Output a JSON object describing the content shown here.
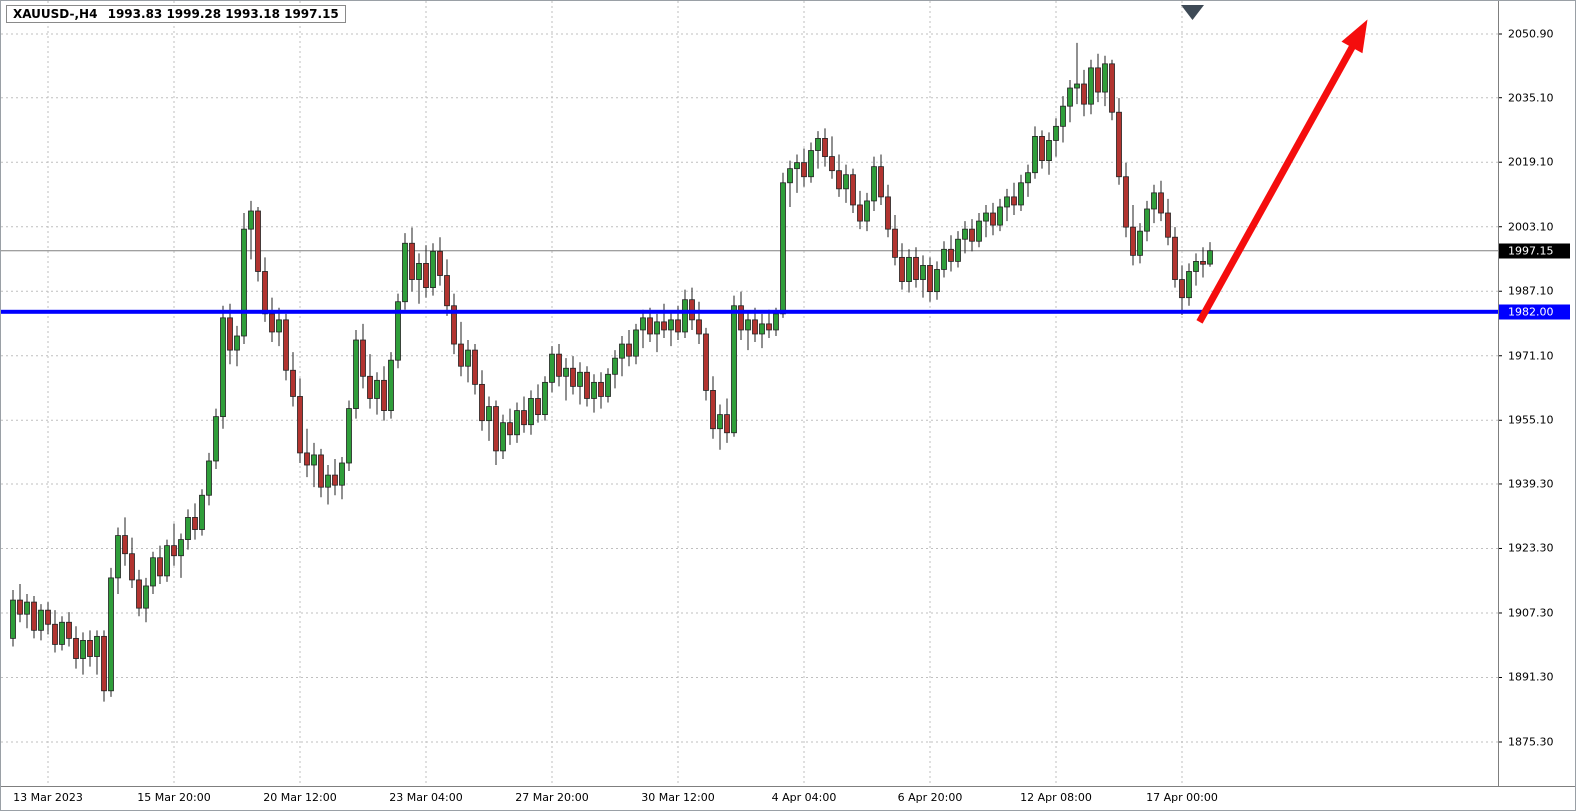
{
  "header": {
    "symbol_period": "XAUUSD-,H4",
    "ohlc_values": "1993.83 1999.28 1993.18 1997.15"
  },
  "colors": {
    "up": "#2f9e3a",
    "down": "#b23430",
    "wick": "#222222",
    "grid": "#bfbfbf",
    "axis_text": "#000000",
    "level_line": "#0000ff",
    "current_price_line": "#808080",
    "arrow": "#f50d0d",
    "badge_current_bg": "#000000",
    "badge_level_bg": "#0000ff",
    "badge_text": "#ffffff",
    "scroll_marker": "#3e4a56"
  },
  "price_axis": {
    "labels": [
      "2050.90",
      "2035.10",
      "2019.10",
      "2003.10",
      "1987.10",
      "1971.10",
      "1955.10",
      "1939.30",
      "1923.30",
      "1907.30",
      "1891.30",
      "1875.30"
    ],
    "current_price": "1997.15",
    "level_price": "1982.00"
  },
  "time_axis": {
    "labels": [
      {
        "text": "13 Mar 2023",
        "index": 5
      },
      {
        "text": "15 Mar 20:00",
        "index": 23
      },
      {
        "text": "20 Mar 12:00",
        "index": 41
      },
      {
        "text": "23 Mar 04:00",
        "index": 59
      },
      {
        "text": "27 Mar 20:00",
        "index": 77
      },
      {
        "text": "30 Mar 12:00",
        "index": 95
      },
      {
        "text": "4 Apr 04:00",
        "index": 113
      },
      {
        "text": "6 Apr 20:00",
        "index": 131
      },
      {
        "text": "12 Apr 08:00",
        "index": 149
      },
      {
        "text": "17 Apr 00:00",
        "index": 167
      }
    ]
  },
  "chart_data": {
    "type": "candlestick",
    "title": "XAUUSD H4 candlestick chart with 1982.00 support line and bullish arrow",
    "symbol": "XAUUSD-",
    "period": "H4",
    "ylim": [
      1869.0,
      2055.0
    ],
    "grid": true,
    "level_line_price": 1982.0,
    "current_price": 1997.15,
    "last_bar_ohlc": [
      1993.83,
      1999.28,
      1993.18,
      1997.15
    ],
    "candles_format": [
      "open",
      "high",
      "low",
      "close"
    ],
    "candles": [
      [
        1901.0,
        1913.0,
        1899.0,
        1910.5
      ],
      [
        1910.5,
        1914.5,
        1905.0,
        1907.0
      ],
      [
        1907.0,
        1912.0,
        1903.5,
        1910.0
      ],
      [
        1910.0,
        1911.5,
        1901.0,
        1903.0
      ],
      [
        1903.0,
        1909.5,
        1900.5,
        1908.0
      ],
      [
        1908.0,
        1910.0,
        1902.0,
        1904.5
      ],
      [
        1904.5,
        1908.0,
        1897.5,
        1899.5
      ],
      [
        1899.5,
        1906.5,
        1898.0,
        1905.0
      ],
      [
        1905.0,
        1907.5,
        1899.0,
        1901.0
      ],
      [
        1901.0,
        1904.0,
        1893.5,
        1896.0
      ],
      [
        1896.0,
        1902.5,
        1892.0,
        1900.5
      ],
      [
        1900.5,
        1903.0,
        1894.0,
        1896.5
      ],
      [
        1896.5,
        1903.0,
        1892.0,
        1901.5
      ],
      [
        1901.5,
        1903.0,
        1885.3,
        1888.0
      ],
      [
        1888.0,
        1918.5,
        1886.5,
        1916.0
      ],
      [
        1916.0,
        1928.5,
        1912.0,
        1926.5
      ],
      [
        1926.5,
        1931.0,
        1919.0,
        1922.0
      ],
      [
        1922.0,
        1926.0,
        1913.5,
        1915.5
      ],
      [
        1915.5,
        1918.0,
        1906.5,
        1908.5
      ],
      [
        1908.5,
        1916.0,
        1905.0,
        1914.0
      ],
      [
        1914.0,
        1922.5,
        1912.0,
        1921.0
      ],
      [
        1921.0,
        1924.0,
        1914.5,
        1916.5
      ],
      [
        1916.5,
        1925.5,
        1915.0,
        1924.0
      ],
      [
        1924.0,
        1929.5,
        1919.0,
        1921.5
      ],
      [
        1921.5,
        1927.0,
        1916.0,
        1925.5
      ],
      [
        1925.5,
        1933.0,
        1923.0,
        1931.0
      ],
      [
        1931.0,
        1934.5,
        1925.5,
        1928.0
      ],
      [
        1928.0,
        1938.0,
        1926.5,
        1936.5
      ],
      [
        1936.5,
        1947.0,
        1934.0,
        1945.0
      ],
      [
        1945.0,
        1958.0,
        1943.0,
        1956.0
      ],
      [
        1956.0,
        1983.5,
        1953.0,
        1980.5
      ],
      [
        1980.5,
        1984.0,
        1969.0,
        1972.5
      ],
      [
        1972.5,
        1978.5,
        1968.5,
        1976.0
      ],
      [
        1976.0,
        2006.5,
        1974.0,
        2002.5
      ],
      [
        2002.5,
        2009.5,
        1995.0,
        2007.0
      ],
      [
        2007.0,
        2008.0,
        1989.5,
        1992.0
      ],
      [
        1992.0,
        1995.5,
        1979.5,
        1981.5
      ],
      [
        1981.5,
        1985.5,
        1974.5,
        1977.0
      ],
      [
        1977.0,
        1983.0,
        1973.5,
        1980.0
      ],
      [
        1980.0,
        1981.5,
        1965.0,
        1967.5
      ],
      [
        1967.5,
        1972.0,
        1958.5,
        1961.0
      ],
      [
        1961.0,
        1965.5,
        1944.5,
        1947.0
      ],
      [
        1947.0,
        1953.0,
        1941.0,
        1944.0
      ],
      [
        1944.0,
        1949.5,
        1938.5,
        1946.5
      ],
      [
        1946.5,
        1948.0,
        1936.0,
        1938.5
      ],
      [
        1938.5,
        1944.0,
        1934.2,
        1941.5
      ],
      [
        1941.5,
        1945.5,
        1936.5,
        1939.0
      ],
      [
        1939.0,
        1946.0,
        1935.5,
        1944.5
      ],
      [
        1944.5,
        1960.0,
        1942.5,
        1958.0
      ],
      [
        1958.0,
        1977.5,
        1955.5,
        1975.0
      ],
      [
        1975.0,
        1979.0,
        1963.0,
        1966.0
      ],
      [
        1966.0,
        1971.5,
        1958.0,
        1960.5
      ],
      [
        1960.5,
        1967.0,
        1956.5,
        1965.0
      ],
      [
        1965.0,
        1968.5,
        1955.0,
        1957.5
      ],
      [
        1957.5,
        1972.0,
        1955.5,
        1970.0
      ],
      [
        1970.0,
        1986.5,
        1968.0,
        1984.5
      ],
      [
        1984.5,
        2001.5,
        1982.5,
        1999.0
      ],
      [
        1999.0,
        2002.9,
        1987.0,
        1990.0
      ],
      [
        1990.0,
        1996.5,
        1984.0,
        1994.0
      ],
      [
        1994.0,
        1998.5,
        1985.5,
        1988.0
      ],
      [
        1988.0,
        1999.0,
        1986.0,
        1997.0
      ],
      [
        1997.0,
        2000.5,
        1988.5,
        1991.0
      ],
      [
        1991.0,
        1995.0,
        1981.0,
        1983.5
      ],
      [
        1983.5,
        1986.5,
        1971.5,
        1974.0
      ],
      [
        1974.0,
        1979.5,
        1966.0,
        1968.5
      ],
      [
        1968.5,
        1975.0,
        1964.5,
        1972.5
      ],
      [
        1972.5,
        1974.0,
        1961.5,
        1964.0
      ],
      [
        1964.0,
        1967.5,
        1952.5,
        1955.0
      ],
      [
        1955.0,
        1961.0,
        1950.0,
        1958.5
      ],
      [
        1958.5,
        1960.0,
        1944.0,
        1947.5
      ],
      [
        1947.5,
        1956.5,
        1945.5,
        1954.5
      ],
      [
        1954.5,
        1958.0,
        1949.0,
        1951.5
      ],
      [
        1951.5,
        1959.5,
        1949.5,
        1957.5
      ],
      [
        1957.5,
        1961.0,
        1952.0,
        1954.0
      ],
      [
        1954.0,
        1962.5,
        1951.5,
        1960.5
      ],
      [
        1960.5,
        1964.0,
        1954.5,
        1956.5
      ],
      [
        1956.5,
        1966.0,
        1955.0,
        1964.5
      ],
      [
        1964.5,
        1973.5,
        1962.0,
        1971.5
      ],
      [
        1971.5,
        1974.0,
        1963.5,
        1966.0
      ],
      [
        1966.0,
        1970.5,
        1960.0,
        1968.0
      ],
      [
        1968.0,
        1971.0,
        1961.5,
        1963.5
      ],
      [
        1963.5,
        1969.5,
        1959.0,
        1967.0
      ],
      [
        1967.0,
        1968.5,
        1958.5,
        1960.5
      ],
      [
        1960.5,
        1966.5,
        1957.0,
        1964.5
      ],
      [
        1964.5,
        1967.0,
        1958.0,
        1961.0
      ],
      [
        1961.0,
        1968.0,
        1959.5,
        1966.5
      ],
      [
        1966.5,
        1972.5,
        1963.0,
        1970.5
      ],
      [
        1970.5,
        1976.0,
        1966.0,
        1974.0
      ],
      [
        1974.0,
        1977.5,
        1968.5,
        1971.0
      ],
      [
        1971.0,
        1979.0,
        1969.0,
        1977.5
      ],
      [
        1977.5,
        1982.5,
        1973.0,
        1980.5
      ],
      [
        1980.5,
        1983.0,
        1974.5,
        1976.5
      ],
      [
        1976.5,
        1981.5,
        1972.0,
        1979.5
      ],
      [
        1979.5,
        1984.0,
        1975.5,
        1977.5
      ],
      [
        1977.5,
        1982.0,
        1973.5,
        1980.0
      ],
      [
        1980.0,
        1983.5,
        1975.0,
        1977.0
      ],
      [
        1977.0,
        1987.5,
        1975.5,
        1985.0
      ],
      [
        1985.0,
        1988.0,
        1977.5,
        1980.0
      ],
      [
        1980.0,
        1984.5,
        1974.0,
        1976.5
      ],
      [
        1976.5,
        1978.0,
        1960.0,
        1962.5
      ],
      [
        1962.5,
        1966.0,
        1950.5,
        1953.0
      ],
      [
        1953.0,
        1959.0,
        1947.8,
        1956.5
      ],
      [
        1956.5,
        1960.5,
        1949.5,
        1952.0
      ],
      [
        1952.0,
        1986.0,
        1951.0,
        1983.5
      ],
      [
        1983.5,
        1987.0,
        1975.0,
        1977.5
      ],
      [
        1977.5,
        1982.0,
        1972.5,
        1980.0
      ],
      [
        1980.0,
        1983.0,
        1974.5,
        1976.5
      ],
      [
        1976.5,
        1981.5,
        1973.0,
        1979.0
      ],
      [
        1979.0,
        1982.5,
        1975.5,
        1977.5
      ],
      [
        1977.5,
        1983.0,
        1976.0,
        1981.5
      ],
      [
        1981.5,
        2016.5,
        1980.5,
        2014.0
      ],
      [
        2014.0,
        2019.5,
        2008.0,
        2017.5
      ],
      [
        2017.5,
        2021.0,
        2011.5,
        2019.0
      ],
      [
        2019.0,
        2022.5,
        2013.0,
        2015.5
      ],
      [
        2015.5,
        2024.0,
        2014.0,
        2022.0
      ],
      [
        2022.0,
        2026.8,
        2017.5,
        2025.0
      ],
      [
        2025.0,
        2027.5,
        2018.0,
        2020.5
      ],
      [
        2020.5,
        2025.5,
        2015.0,
        2017.0
      ],
      [
        2017.0,
        2021.0,
        2010.5,
        2012.5
      ],
      [
        2012.5,
        2018.5,
        2009.0,
        2016.0
      ],
      [
        2016.0,
        2017.5,
        2006.5,
        2008.5
      ],
      [
        2008.5,
        2012.0,
        2002.5,
        2004.5
      ],
      [
        2004.5,
        2011.5,
        2002.0,
        2009.5
      ],
      [
        2009.5,
        2020.5,
        2007.0,
        2018.0
      ],
      [
        2018.0,
        2021.0,
        2008.5,
        2010.5
      ],
      [
        2010.5,
        2013.5,
        2000.5,
        2002.5
      ],
      [
        2002.5,
        2006.0,
        1993.5,
        1995.5
      ],
      [
        1995.5,
        1999.0,
        1987.5,
        1989.5
      ],
      [
        1989.5,
        1997.5,
        1986.8,
        1995.5
      ],
      [
        1995.5,
        1998.0,
        1988.0,
        1990.0
      ],
      [
        1990.0,
        1996.0,
        1985.5,
        1993.5
      ],
      [
        1993.5,
        1995.5,
        1984.5,
        1987.0
      ],
      [
        1987.0,
        1994.5,
        1985.0,
        1992.5
      ],
      [
        1992.5,
        1999.5,
        1990.5,
        1997.5
      ],
      [
        1997.5,
        2001.0,
        1992.0,
        1994.5
      ],
      [
        1994.5,
        2002.0,
        1993.0,
        2000.0
      ],
      [
        2000.0,
        2004.5,
        1996.5,
        2002.5
      ],
      [
        2002.5,
        2005.0,
        1997.0,
        1999.5
      ],
      [
        1999.5,
        2006.5,
        1998.0,
        2004.5
      ],
      [
        2004.5,
        2008.5,
        2000.5,
        2006.5
      ],
      [
        2006.5,
        2009.0,
        2001.0,
        2003.5
      ],
      [
        2003.5,
        2010.0,
        2002.0,
        2008.0
      ],
      [
        2008.0,
        2012.5,
        2004.5,
        2010.5
      ],
      [
        2010.5,
        2014.0,
        2006.0,
        2008.5
      ],
      [
        2008.5,
        2016.0,
        2007.0,
        2014.0
      ],
      [
        2014.0,
        2018.5,
        2010.5,
        2016.5
      ],
      [
        2016.5,
        2028.0,
        2015.0,
        2025.5
      ],
      [
        2025.5,
        2027.0,
        2017.5,
        2019.5
      ],
      [
        2019.5,
        2026.5,
        2016.0,
        2024.5
      ],
      [
        2024.5,
        2030.0,
        2020.5,
        2028.0
      ],
      [
        2028.0,
        2035.5,
        2024.0,
        2033.0
      ],
      [
        2033.0,
        2039.5,
        2029.0,
        2037.5
      ],
      [
        2037.5,
        2048.7,
        2033.5,
        2038.5
      ],
      [
        2038.5,
        2042.0,
        2030.5,
        2033.5
      ],
      [
        2033.5,
        2044.5,
        2031.0,
        2042.5
      ],
      [
        2042.5,
        2046.0,
        2034.0,
        2036.5
      ],
      [
        2036.5,
        2045.5,
        2033.0,
        2043.5
      ],
      [
        2043.5,
        2044.5,
        2029.5,
        2031.5
      ],
      [
        2031.5,
        2035.0,
        2013.5,
        2015.5
      ],
      [
        2015.5,
        2019.0,
        2000.5,
        2003.0
      ],
      [
        2003.0,
        2008.5,
        1993.5,
        1996.0
      ],
      [
        1996.0,
        2004.0,
        1994.0,
        2002.0
      ],
      [
        2002.0,
        2009.5,
        1999.5,
        2007.5
      ],
      [
        2007.5,
        2013.5,
        2004.0,
        2011.5
      ],
      [
        2011.5,
        2014.5,
        2004.5,
        2006.5
      ],
      [
        2006.5,
        2010.0,
        1998.5,
        2000.5
      ],
      [
        2000.5,
        2003.0,
        1988.0,
        1990.0
      ],
      [
        1990.0,
        1993.5,
        1981.2,
        1985.5
      ],
      [
        1985.5,
        1994.0,
        1983.5,
        1992.0
      ],
      [
        1992.0,
        1996.5,
        1988.5,
        1994.5
      ],
      [
        1994.5,
        1998.0,
        1990.5,
        1993.8
      ],
      [
        1993.83,
        1999.28,
        1993.18,
        1997.15
      ]
    ],
    "annotations": {
      "trend_arrow": {
        "type": "arrow",
        "direction": "up",
        "from_index": 169.5,
        "from_price": 1979.5,
        "to_index": 193.5,
        "to_price": 2054.5
      }
    }
  }
}
